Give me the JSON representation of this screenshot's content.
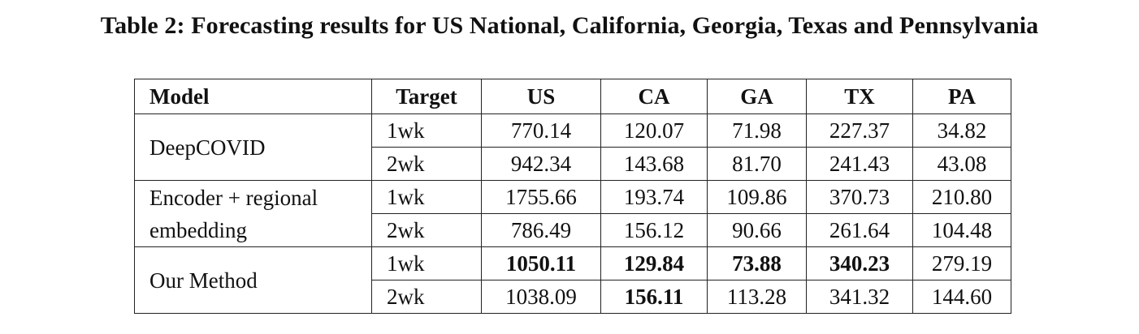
{
  "caption": "Table 2: Forecasting results for US National, California, Georgia, Texas and Pennsylvania",
  "table": {
    "headers": [
      "Model",
      "Target",
      "US",
      "CA",
      "GA",
      "TX",
      "PA"
    ],
    "groups": [
      {
        "model_lines": [
          "DeepCOVID"
        ],
        "rows": [
          {
            "target": "1wk",
            "values": [
              "770.14",
              "120.07",
              "71.98",
              "227.37",
              "34.82"
            ],
            "bold": [
              false,
              false,
              false,
              false,
              false
            ]
          },
          {
            "target": "2wk",
            "values": [
              "942.34",
              "143.68",
              "81.70",
              "241.43",
              "43.08"
            ],
            "bold": [
              false,
              false,
              false,
              false,
              false
            ]
          }
        ]
      },
      {
        "model_lines": [
          "Encoder + regional",
          "embedding"
        ],
        "rows": [
          {
            "target": "1wk",
            "values": [
              "1755.66",
              "193.74",
              "109.86",
              "370.73",
              "210.80"
            ],
            "bold": [
              false,
              false,
              false,
              false,
              false
            ]
          },
          {
            "target": "2wk",
            "values": [
              "786.49",
              "156.12",
              "90.66",
              "261.64",
              "104.48"
            ],
            "bold": [
              false,
              false,
              false,
              false,
              false
            ]
          }
        ]
      },
      {
        "model_lines": [
          "Our Method"
        ],
        "rows": [
          {
            "target": "1wk",
            "values": [
              "1050.11",
              "129.84",
              "73.88",
              "340.23",
              "279.19"
            ],
            "bold": [
              true,
              true,
              true,
              true,
              false
            ]
          },
          {
            "target": "2wk",
            "values": [
              "1038.09",
              "156.11",
              "113.28",
              "341.32",
              "144.60"
            ],
            "bold": [
              false,
              true,
              false,
              false,
              false
            ]
          }
        ]
      }
    ]
  }
}
